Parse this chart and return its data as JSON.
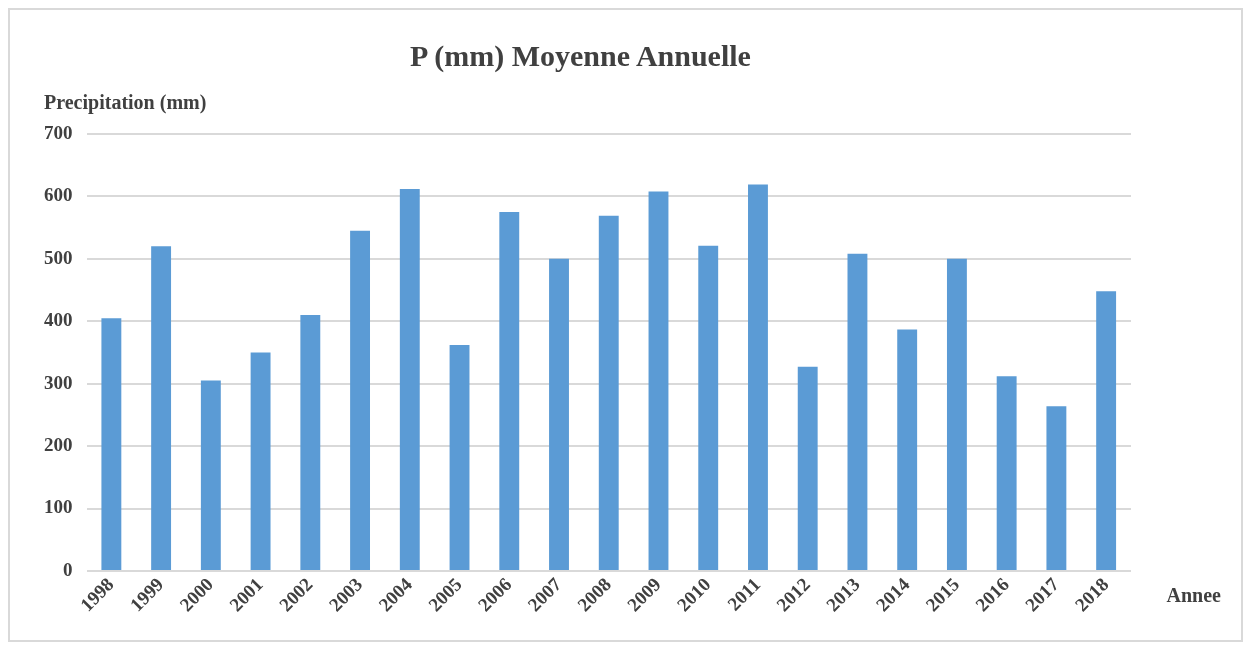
{
  "chart_data": {
    "type": "bar",
    "title": "P (mm) Moyenne Annuelle",
    "ylabel": "Precipitation (mm)",
    "xlabel": "Annee",
    "categories": [
      "1998",
      "1999",
      "2000",
      "2001",
      "2002",
      "2003",
      "2004",
      "2005",
      "2006",
      "2007",
      "2008",
      "2009",
      "2010",
      "2011",
      "2012",
      "2013",
      "2014",
      "2015",
      "2016",
      "2017",
      "2018"
    ],
    "values": [
      405,
      520,
      305,
      350,
      410,
      545,
      612,
      362,
      575,
      500,
      569,
      608,
      521,
      619,
      327,
      508,
      387,
      500,
      312,
      264,
      448
    ],
    "color": "#5b9bd5",
    "ylim": [
      0,
      700
    ],
    "yticks": [
      0,
      100,
      200,
      300,
      400,
      500,
      600,
      700
    ],
    "grid": "y",
    "legend": false
  }
}
